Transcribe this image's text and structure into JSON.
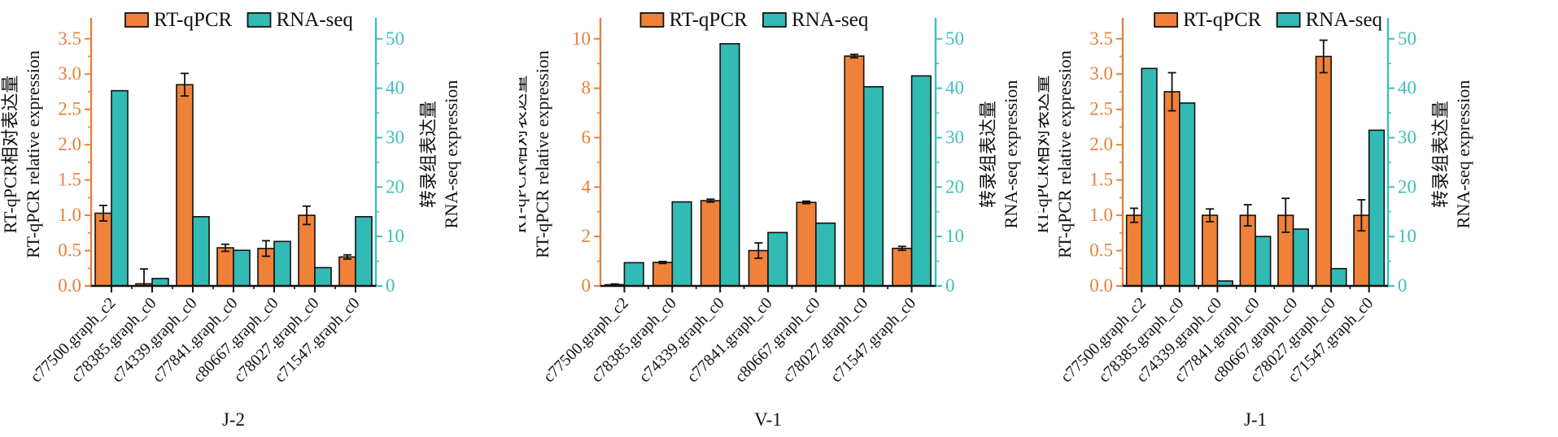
{
  "figure": {
    "legend": [
      {
        "label": "RT-qPCR",
        "swatch": "orange"
      },
      {
        "label": "RNA-seq",
        "swatch": "teal"
      }
    ],
    "left_axis_title_zh": "RT-qPCR相对表达量",
    "left_axis_title_en": "RT-qPCR relative expression",
    "right_axis_title_zh": "转录组表达量",
    "right_axis_title_en": "RNA-seq expression"
  },
  "colors": {
    "orange_fill": "#F08138",
    "teal_fill": "#32BAB4",
    "orange_axis": "#E8803C",
    "teal_axis": "#3FBFBB",
    "bar_outline": "#111111",
    "text_black": "#1a1a1a",
    "error_bar": "#111111"
  },
  "chart_data": [
    {
      "type": "bar",
      "panel_label": "J-2",
      "categories": [
        "c77500.graph_c2",
        "c78385.graph_c0",
        "c74339.graph_c0",
        "c77841.graph_c0",
        "c80667.graph_c0",
        "c78027.graph_c0",
        "c71547.graph_c0"
      ],
      "series": [
        {
          "name": "RT-qPCR",
          "axis": "left",
          "values": [
            1.03,
            0.03,
            2.85,
            0.54,
            0.53,
            1.0,
            0.41
          ],
          "errors": [
            0.11,
            0.21,
            0.16,
            0.05,
            0.11,
            0.13,
            0.03
          ]
        },
        {
          "name": "RNA-seq",
          "axis": "right",
          "values": [
            39.5,
            1.5,
            14.0,
            7.2,
            9.0,
            3.7,
            14.0
          ]
        }
      ],
      "left_axis": {
        "min": 0,
        "max": 3.5,
        "step": 0.5,
        "decimals": 1
      },
      "right_axis": {
        "min": 0,
        "max": 50,
        "step": 10,
        "decimals": 0
      }
    },
    {
      "type": "bar",
      "panel_label": "V-1",
      "categories": [
        "c77500.graph_c2",
        "c78385.graph_c0",
        "c74339.graph_c0",
        "c77841.graph_c0",
        "c80667.graph_c0",
        "c78027.graph_c0",
        "c71547.graph_c0"
      ],
      "series": [
        {
          "name": "RT-qPCR",
          "axis": "left",
          "values": [
            0.05,
            0.95,
            3.45,
            1.43,
            3.38,
            9.3,
            1.52
          ],
          "errors": [
            0.03,
            0.04,
            0.06,
            0.31,
            0.05,
            0.07,
            0.08
          ]
        },
        {
          "name": "RNA-seq",
          "axis": "right",
          "values": [
            4.7,
            17.0,
            49.0,
            10.8,
            12.7,
            40.3,
            42.5
          ]
        }
      ],
      "left_axis": {
        "min": 0,
        "max": 10,
        "step": 2,
        "decimals": 0
      },
      "right_axis": {
        "min": 0,
        "max": 50,
        "step": 10,
        "decimals": 0
      }
    },
    {
      "type": "bar",
      "panel_label": "J-1",
      "categories": [
        "c77500.graph_c2",
        "c78385.graph_c0",
        "c74339.graph_c0",
        "c77841.graph_c0",
        "c80667.graph_c0",
        "c78027.graph_c0",
        "c71547.graph_c0"
      ],
      "series": [
        {
          "name": "RT-qPCR",
          "axis": "left",
          "values": [
            1.0,
            2.75,
            1.0,
            1.0,
            1.0,
            3.25,
            1.0
          ],
          "errors": [
            0.1,
            0.27,
            0.09,
            0.15,
            0.24,
            0.23,
            0.22
          ]
        },
        {
          "name": "RNA-seq",
          "axis": "right",
          "values": [
            44.0,
            37.0,
            1.0,
            10.0,
            11.5,
            3.5,
            31.5
          ]
        }
      ],
      "left_axis": {
        "min": 0,
        "max": 3.5,
        "step": 0.5,
        "decimals": 1
      },
      "right_axis": {
        "min": 0,
        "max": 50,
        "step": 10,
        "decimals": 0
      }
    }
  ]
}
